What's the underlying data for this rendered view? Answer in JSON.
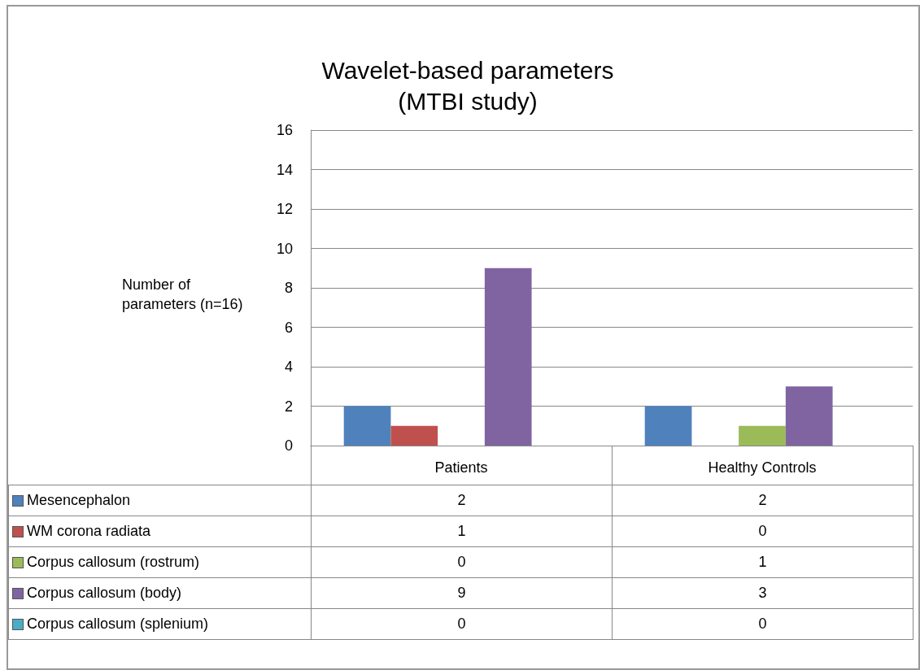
{
  "chart_data": {
    "type": "bar",
    "title": "Wavelet-based parameters\n(MTBI study)",
    "ylabel": "Number of\nparameters (n=16)",
    "categories": [
      "Patients",
      "Healthy Controls"
    ],
    "series": [
      {
        "name": "Mesencephalon",
        "color": "#4f81bd",
        "values": [
          2,
          2
        ]
      },
      {
        "name": "WM corona radiata",
        "color": "#c0504d",
        "values": [
          1,
          0
        ]
      },
      {
        "name": "Corpus callosum (rostrum)",
        "color": "#9bbb59",
        "values": [
          0,
          1
        ]
      },
      {
        "name": "Corpus callosum (body)",
        "color": "#8064a2",
        "values": [
          9,
          3
        ]
      },
      {
        "name": "Corpus callosum (splenium)",
        "color": "#4bacc6",
        "values": [
          0,
          0
        ]
      }
    ],
    "ylim": [
      0,
      16
    ],
    "yticks": [
      0,
      2,
      4,
      6,
      8,
      10,
      12,
      14,
      16
    ],
    "grid": "y",
    "legend": "bottom",
    "data_labels": true
  }
}
